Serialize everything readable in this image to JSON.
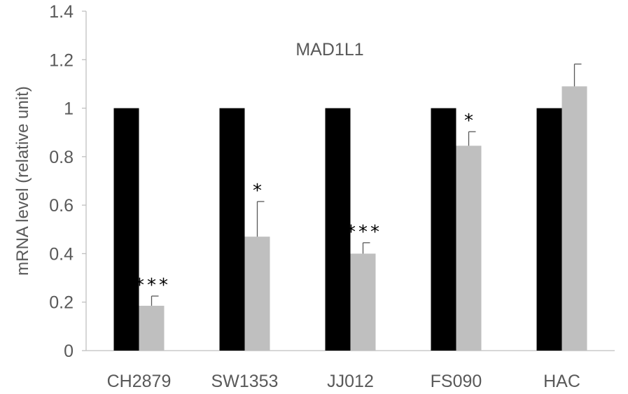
{
  "chart_data": {
    "type": "bar",
    "title": "MAD1L1",
    "xlabel": "",
    "ylabel": "mRNA level (relative unit)",
    "ylim": [
      0,
      1.4
    ],
    "yticks": [
      "0",
      "0.2",
      "0.4",
      "0.6",
      "0.8",
      "1",
      "1.2",
      "1.4"
    ],
    "categories": [
      "CH2879",
      "SW1353",
      "JJ012",
      "FS090",
      "HAC"
    ],
    "series": [
      {
        "values": [
          1,
          1,
          1,
          1,
          1
        ],
        "color": "#000000"
      },
      {
        "values": [
          0.185,
          0.47,
          0.4,
          0.845,
          1.09
        ],
        "error": [
          0.04,
          0.145,
          0.045,
          0.058,
          0.092
        ],
        "color": "#bfbfbf"
      }
    ],
    "significance": [
      "***",
      "*",
      "***",
      "*",
      ""
    ],
    "grid": false,
    "legend": "none"
  }
}
